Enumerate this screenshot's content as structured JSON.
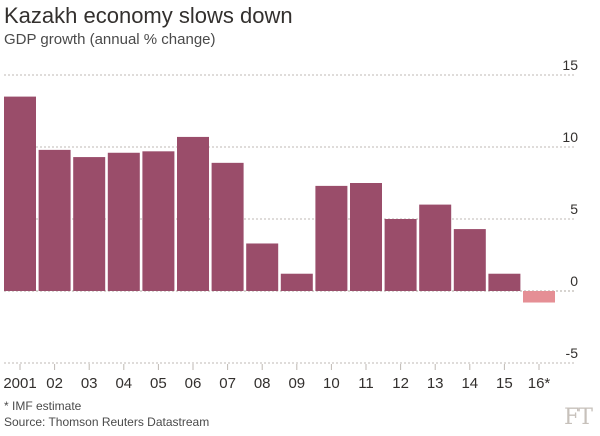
{
  "title": "Kazakh economy slows down",
  "subtitle": "GDP growth (annual % change)",
  "footnote": "* IMF estimate",
  "source": "Source: Thomson Reuters Datastream",
  "logo": "FT",
  "colors": {
    "positive_bar": "#9a4d6a",
    "negative_bar": "#e58f95",
    "gridline": "#bfbab4",
    "axis_text": "#33302e"
  },
  "chart_data": {
    "type": "bar",
    "title": "Kazakh economy slows down",
    "subtitle": "GDP growth (annual % change)",
    "xlabel": "",
    "ylabel": "",
    "categories": [
      "2001",
      "02",
      "03",
      "04",
      "05",
      "06",
      "07",
      "08",
      "09",
      "10",
      "11",
      "12",
      "13",
      "14",
      "15",
      "16*"
    ],
    "values": [
      13.5,
      9.8,
      9.3,
      9.6,
      9.7,
      10.7,
      8.9,
      3.3,
      1.2,
      7.3,
      7.5,
      5.0,
      6.0,
      4.3,
      1.2,
      -0.8
    ],
    "ylim": [
      -5,
      15
    ],
    "yticks": [
      15,
      10,
      5,
      0,
      -5
    ],
    "grid": true,
    "legend": "none"
  }
}
